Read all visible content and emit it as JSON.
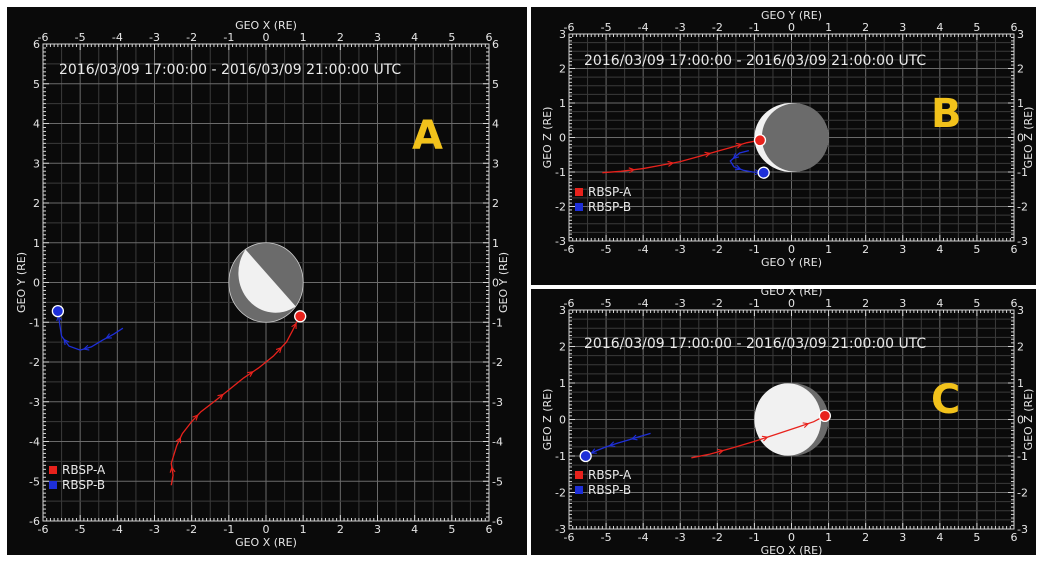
{
  "chart_data": [
    {
      "type": "scatter",
      "panel_label": "A",
      "time_range": "2016/03/09 17:00:00 - 2016/03/09 21:00:00 UTC",
      "xlabel": "GEO X (RE)",
      "ylabel": "GEO Y (RE)",
      "xlim": [
        -6,
        6
      ],
      "ylim": [
        -6,
        6
      ],
      "xticks": [
        -6,
        -5,
        -4,
        -3,
        -2,
        -1,
        0,
        1,
        2,
        3,
        4,
        5,
        6
      ],
      "yticks": [
        -6,
        -5,
        -4,
        -3,
        -2,
        -1,
        0,
        1,
        2,
        3,
        4,
        5,
        6
      ],
      "grid": true,
      "legend_position": "bottom-left",
      "earth": {
        "center": [
          0,
          0
        ],
        "radius": 1,
        "shading": "night side toward upper-right"
      },
      "series": [
        {
          "name": "RBSP-A",
          "color": "#e8221c",
          "x": [
            -2.55,
            -2.5,
            -2.55,
            -2.4,
            -2.25,
            -2.0,
            -1.75,
            -1.4,
            -1.0,
            -0.6,
            -0.2,
            0.2,
            0.55,
            0.72,
            0.85,
            0.92
          ],
          "y": [
            -5.1,
            -4.85,
            -4.55,
            -4.1,
            -3.8,
            -3.5,
            -3.25,
            -3.0,
            -2.7,
            -2.4,
            -2.15,
            -1.85,
            -1.5,
            -1.2,
            -0.95,
            -0.85
          ]
        },
        {
          "name": "RBSP-B",
          "color": "#1e2fd8",
          "x": [
            -3.85,
            -4.1,
            -4.4,
            -4.7,
            -5.0,
            -5.3,
            -5.5,
            -5.55,
            -5.6
          ],
          "y": [
            -1.15,
            -1.3,
            -1.45,
            -1.62,
            -1.7,
            -1.6,
            -1.35,
            -1.05,
            -0.72
          ]
        }
      ]
    },
    {
      "type": "scatter",
      "panel_label": "B",
      "time_range": "2016/03/09 17:00:00 - 2016/03/09 21:00:00 UTC",
      "xlabel": "GEO Y (RE)",
      "ylabel": "GEO Z (RE)",
      "xlim": [
        -6,
        6
      ],
      "ylim": [
        -3,
        3
      ],
      "xticks": [
        -6,
        -5,
        -4,
        -3,
        -2,
        -1,
        0,
        1,
        2,
        3,
        4,
        5,
        6
      ],
      "yticks": [
        -3,
        -2,
        -1,
        0,
        1,
        2,
        3
      ],
      "grid": true,
      "legend_position": "bottom-left",
      "earth": {
        "center": [
          0,
          0
        ],
        "radius": 1,
        "shading": "day side toward left"
      },
      "series": [
        {
          "name": "RBSP-A",
          "color": "#e8221c",
          "x": [
            -5.1,
            -4.6,
            -4.0,
            -3.5,
            -3.0,
            -2.5,
            -2.0,
            -1.6,
            -1.2,
            -0.85
          ],
          "y": [
            -1.02,
            -0.98,
            -0.9,
            -0.8,
            -0.7,
            -0.55,
            -0.4,
            -0.28,
            -0.15,
            -0.08
          ]
        },
        {
          "name": "RBSP-B",
          "color": "#1e2fd8",
          "x": [
            -1.15,
            -1.4,
            -1.65,
            -1.55,
            -1.3,
            -1.05,
            -0.75
          ],
          "y": [
            -0.38,
            -0.45,
            -0.68,
            -0.85,
            -0.95,
            -1.0,
            -1.02
          ]
        }
      ]
    },
    {
      "type": "scatter",
      "panel_label": "C",
      "time_range": "2016/03/09 17:00:00 - 2016/03/09 21:00:00 UTC",
      "xlabel": "GEO X (RE)",
      "ylabel": "GEO Z (RE)",
      "xlim": [
        -6,
        6
      ],
      "ylim": [
        -3,
        3
      ],
      "xticks": [
        -6,
        -5,
        -4,
        -3,
        -2,
        -1,
        0,
        1,
        2,
        3,
        4,
        5,
        6
      ],
      "yticks": [
        -3,
        -2,
        -1,
        0,
        1,
        2,
        3
      ],
      "grid": true,
      "legend_position": "bottom-left",
      "earth": {
        "center": [
          0,
          0
        ],
        "radius": 1,
        "shading": "day side toward left"
      },
      "series": [
        {
          "name": "RBSP-A",
          "color": "#e8221c",
          "x": [
            -2.7,
            -2.2,
            -1.6,
            -1.0,
            -0.4,
            0.2,
            0.6,
            0.9
          ],
          "y": [
            -1.05,
            -0.95,
            -0.78,
            -0.6,
            -0.4,
            -0.2,
            -0.06,
            0.1
          ]
        },
        {
          "name": "RBSP-B",
          "color": "#1e2fd8",
          "x": [
            -3.8,
            -4.1,
            -4.4,
            -4.7,
            -5.0,
            -5.25,
            -5.45,
            -5.55
          ],
          "y": [
            -0.38,
            -0.47,
            -0.56,
            -0.65,
            -0.75,
            -0.85,
            -0.94,
            -1.0
          ]
        }
      ]
    }
  ],
  "colors": {
    "rbsp_a": "#e8221c",
    "rbsp_b": "#1e2fd8",
    "label": "#f2c21b",
    "grid": "#5a5a5a",
    "background": "#0a0a0a"
  }
}
